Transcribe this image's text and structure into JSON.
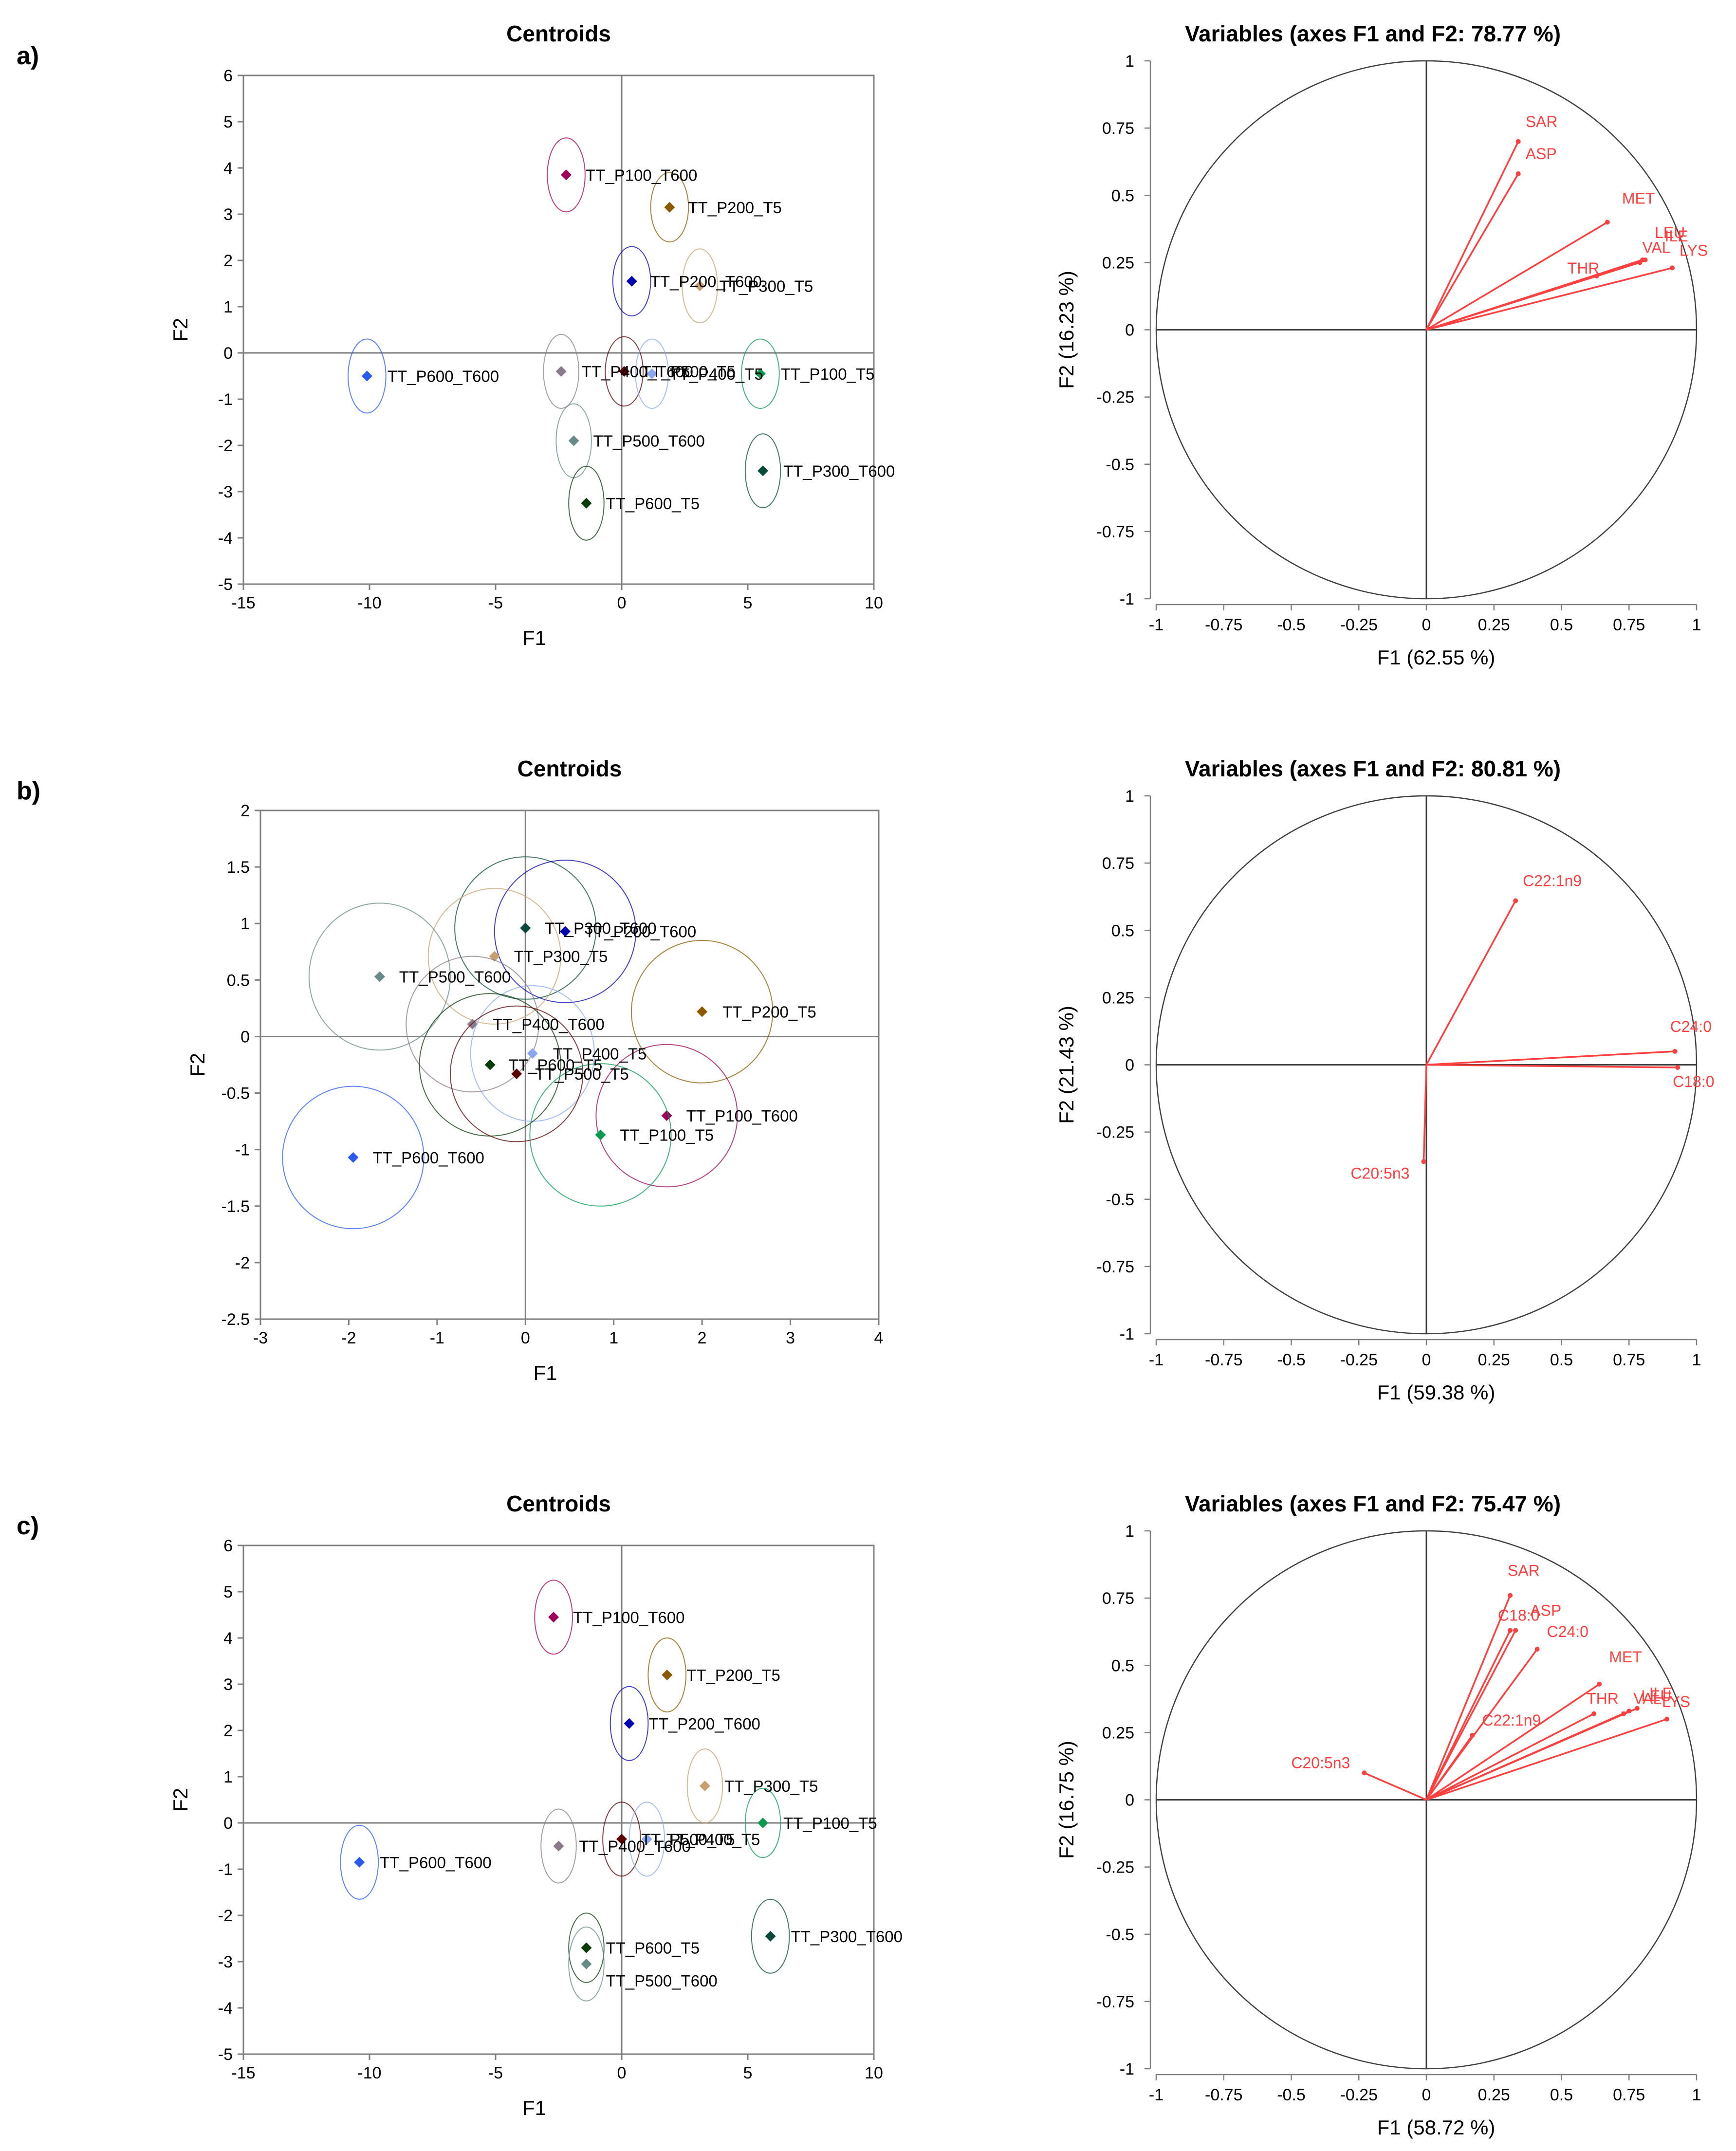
{
  "panel_labels": [
    "a)",
    "b)",
    "c)"
  ],
  "colors": {
    "axis": "#7f7f7f",
    "label": "#000000",
    "vector": "#ff4040",
    "circle": "#404040",
    "group": {
      "TT_P100_T600": "#a0005a",
      "TT_P200_T5": "#8b5a00",
      "TT_P200_T600": "#0000b0",
      "TT_P300_T5": "#c8a070",
      "TT_P300_T600": "#0a4a3a",
      "TT_P400_T600": "#8a7a8a",
      "TT_P400_T5": "#8aa8f0",
      "TT_P500_T5": "#5a0000",
      "TT_P100_T5": "#0a9a50",
      "TT_P600_T600": "#2a5af0",
      "TT_P500_T600": "#6a8a8a",
      "TT_P600_T5": "#0a3a0a"
    }
  },
  "chart_data": [
    {
      "panel": "a)",
      "type": "scatter",
      "title": "Centroids",
      "xlabel": "F1",
      "ylabel": "F2",
      "xlim": [
        -15,
        10
      ],
      "ylim": [
        -5,
        6
      ],
      "xticks": [
        -15,
        -10,
        -5,
        0,
        5,
        10
      ],
      "yticks": [
        -5,
        -4,
        -3,
        -2,
        -1,
        0,
        1,
        2,
        3,
        4,
        5,
        6
      ],
      "points": [
        {
          "label": "TT_P100_T600",
          "x": -2.2,
          "y": 3.85,
          "rx": 0.75,
          "ry": 0.8
        },
        {
          "label": "TT_P200_T5",
          "x": 1.9,
          "y": 3.15,
          "rx": 0.75,
          "ry": 0.75
        },
        {
          "label": "TT_P200_T600",
          "x": 0.4,
          "y": 1.55,
          "rx": 0.75,
          "ry": 0.75
        },
        {
          "label": "TT_P300_T5",
          "x": 3.1,
          "y": 1.45,
          "rx": 0.7,
          "ry": 0.8
        },
        {
          "label": "TT_P600_T600",
          "x": -10.1,
          "y": -0.5,
          "rx": 0.75,
          "ry": 0.8
        },
        {
          "label": "TT_P400_T600",
          "x": -2.4,
          "y": -0.4,
          "rx": 0.7,
          "ry": 0.8
        },
        {
          "label": "TT_P500_T5",
          "x": 0.1,
          "y": -0.4,
          "rx": 0.75,
          "ry": 0.75
        },
        {
          "label": "TT_P400_T5",
          "x": 1.2,
          "y": -0.45,
          "rx": 0.65,
          "ry": 0.75
        },
        {
          "label": "TT_P100_T5",
          "x": 5.5,
          "y": -0.45,
          "rx": 0.75,
          "ry": 0.75
        },
        {
          "label": "TT_P500_T600",
          "x": -1.9,
          "y": -1.9,
          "rx": 0.7,
          "ry": 0.8
        },
        {
          "label": "TT_P300_T600",
          "x": 5.6,
          "y": -2.55,
          "rx": 0.7,
          "ry": 0.8
        },
        {
          "label": "TT_P600_T5",
          "x": -1.4,
          "y": -3.25,
          "rx": 0.7,
          "ry": 0.8
        }
      ],
      "point_labels": [
        {
          "text": "TT_P100_T600",
          "for": "TT_P100_T600"
        },
        {
          "text": "TT_P200_T5",
          "for": "TT_P200_T5"
        },
        {
          "text": "TT_P200_T600",
          "for": "TT_P200_T600"
        },
        {
          "text": "TT_P300_T5",
          "for": "TT_P300_T5"
        },
        {
          "text": "TT_P600_T600",
          "for": "TT_P600_T600"
        },
        {
          "text": "TT_P400_T600",
          "for": "TT_P400_T600"
        },
        {
          "text": "TT_P500_T5",
          "for": "TT_P500_T5"
        },
        {
          "text": "TT_P400_T5",
          "for": "TT_P400_T5"
        },
        {
          "text": "TT_P100_T5",
          "for": "TT_P100_T5"
        },
        {
          "text": "TT_P500_T600",
          "for": "TT_P500_T600"
        },
        {
          "text": "TT_P300_T600",
          "for": "TT_P300_T600"
        },
        {
          "text": "TT_P600_T5",
          "for": "TT_P600_T5"
        }
      ]
    },
    {
      "panel": "a)",
      "type": "correlation-circle",
      "title": "Variables (axes F1 and F2: 78.77 %)",
      "xlabel": "F1 (62.55 %)",
      "ylabel": "F2 (16.23 %)",
      "xlim": [
        -1,
        1
      ],
      "ylim": [
        -1,
        1
      ],
      "xticks": [
        -1,
        -0.75,
        -0.5,
        -0.25,
        0,
        0.25,
        0.5,
        0.75,
        1
      ],
      "yticks": [
        -1,
        -0.75,
        -0.5,
        -0.25,
        0,
        0.25,
        0.5,
        0.75,
        1
      ],
      "vectors": [
        {
          "label": "SAR",
          "x": 0.34,
          "y": 0.7
        },
        {
          "label": "ASP",
          "x": 0.34,
          "y": 0.58
        },
        {
          "label": "MET",
          "x": 0.67,
          "y": 0.4
        },
        {
          "label": "LEU",
          "x": 0.8,
          "y": 0.26
        },
        {
          "label": "ILE",
          "x": 0.81,
          "y": 0.26
        },
        {
          "label": "VAL",
          "x": 0.79,
          "y": 0.25
        },
        {
          "label": "THR",
          "x": 0.63,
          "y": 0.2
        },
        {
          "label": "LYS",
          "x": 0.91,
          "y": 0.23
        }
      ]
    },
    {
      "panel": "b)",
      "type": "scatter",
      "title": "Centroids",
      "xlabel": "F1",
      "ylabel": "F2",
      "xlim": [
        -3,
        4
      ],
      "ylim": [
        -2.5,
        2
      ],
      "xticks": [
        -3,
        -2,
        -1,
        0,
        1,
        2,
        3,
        4
      ],
      "yticks": [
        -2.5,
        -2,
        -1.5,
        -1,
        -0.5,
        0,
        0.5,
        1,
        1.5,
        2
      ],
      "points": [
        {
          "label": "TT_P300_T600",
          "x": 0.0,
          "y": 0.96,
          "rx": 0.8,
          "ry": 0.63
        },
        {
          "label": "TT_P200_T600",
          "x": 0.45,
          "y": 0.93,
          "rx": 0.8,
          "ry": 0.63
        },
        {
          "label": "TT_P300_T5",
          "x": -0.35,
          "y": 0.71,
          "rx": 0.75,
          "ry": 0.6
        },
        {
          "label": "TT_P500_T600",
          "x": -1.65,
          "y": 0.53,
          "rx": 0.8,
          "ry": 0.65
        },
        {
          "label": "TT_P200_T5",
          "x": 2.0,
          "y": 0.22,
          "rx": 0.8,
          "ry": 0.63
        },
        {
          "label": "TT_P400_T600",
          "x": -0.6,
          "y": 0.11,
          "rx": 0.75,
          "ry": 0.6
        },
        {
          "label": "TT_P400_T5",
          "x": 0.08,
          "y": -0.15,
          "rx": 0.7,
          "ry": 0.6
        },
        {
          "label": "TT_P600_T5",
          "x": -0.4,
          "y": -0.25,
          "rx": 0.8,
          "ry": 0.63
        },
        {
          "label": "TT_P500_T5",
          "x": -0.1,
          "y": -0.33,
          "rx": 0.75,
          "ry": 0.6
        },
        {
          "label": "TT_P100_T600",
          "x": 1.6,
          "y": -0.7,
          "rx": 0.8,
          "ry": 0.63
        },
        {
          "label": "TT_P100_T5",
          "x": 0.85,
          "y": -0.87,
          "rx": 0.8,
          "ry": 0.63
        },
        {
          "label": "TT_P600_T600",
          "x": -1.95,
          "y": -1.07,
          "rx": 0.8,
          "ry": 0.63
        }
      ],
      "point_labels": [
        {
          "text": "TT_P300_T600",
          "for": "TT_P300_T600"
        },
        {
          "text": "TT_P200_T600",
          "for": "TT_P200_T600"
        },
        {
          "text": "TT_P300_T5",
          "for": "TT_P300_T5"
        },
        {
          "text": "TT_P500_T600",
          "for": "TT_P500_T600"
        },
        {
          "text": "TT_P200_T5",
          "for": "TT_P200_T5"
        },
        {
          "text": "TT_P400_T600",
          "for": "TT_P400_T600"
        },
        {
          "text": "TT_P400_T5",
          "for": "TT_P400_T5"
        },
        {
          "text": "TT_P600_T5",
          "for": "TT_P600_T5"
        },
        {
          "text": "TT_P500_T5",
          "for": "TT_P500_T5"
        },
        {
          "text": "TT_P100_T600",
          "for": "TT_P100_T600"
        },
        {
          "text": "TT_P100_T5",
          "for": "TT_P100_T5"
        },
        {
          "text": "TT_P600_T600",
          "for": "TT_P600_T600"
        }
      ]
    },
    {
      "panel": "b)",
      "type": "correlation-circle",
      "title": "Variables (axes F1 and F2: 80.81 %)",
      "xlabel": "F1 (59.38 %)",
      "ylabel": "F2 (21.43 %)",
      "xlim": [
        -1,
        1
      ],
      "ylim": [
        -1,
        1
      ],
      "xticks": [
        -1,
        -0.75,
        -0.5,
        -0.25,
        0,
        0.25,
        0.5,
        0.75,
        1
      ],
      "yticks": [
        -1,
        -0.75,
        -0.5,
        -0.25,
        0,
        0.25,
        0.5,
        0.75,
        1
      ],
      "vectors": [
        {
          "label": "C22:1n9",
          "x": 0.33,
          "y": 0.61
        },
        {
          "label": "C24:0",
          "x": 0.92,
          "y": 0.05
        },
        {
          "label": "C18:0",
          "x": 0.93,
          "y": -0.01
        },
        {
          "label": "C20:5n3",
          "x": -0.01,
          "y": -0.36
        }
      ]
    },
    {
      "panel": "c)",
      "type": "scatter",
      "title": "Centroids",
      "xlabel": "F1",
      "ylabel": "F2",
      "xlim": [
        -15,
        10
      ],
      "ylim": [
        -5,
        6
      ],
      "xticks": [
        -15,
        -10,
        -5,
        0,
        5,
        10
      ],
      "yticks": [
        -5,
        -4,
        -3,
        -2,
        -1,
        0,
        1,
        2,
        3,
        4,
        5,
        6
      ],
      "points": [
        {
          "label": "TT_P100_T600",
          "x": -2.7,
          "y": 4.45,
          "rx": 0.75,
          "ry": 0.8
        },
        {
          "label": "TT_P200_T5",
          "x": 1.8,
          "y": 3.2,
          "rx": 0.75,
          "ry": 0.8
        },
        {
          "label": "TT_P200_T600",
          "x": 0.3,
          "y": 2.15,
          "rx": 0.75,
          "ry": 0.8
        },
        {
          "label": "TT_P300_T5",
          "x": 3.3,
          "y": 0.8,
          "rx": 0.7,
          "ry": 0.8
        },
        {
          "label": "TT_P100_T5",
          "x": 5.6,
          "y": 0.0,
          "rx": 0.7,
          "ry": 0.75
        },
        {
          "label": "TT_P500_T5",
          "x": 0.0,
          "y": -0.35,
          "rx": 0.75,
          "ry": 0.8
        },
        {
          "label": "TT_P400_T5",
          "x": 1.0,
          "y": -0.35,
          "rx": 0.7,
          "ry": 0.8
        },
        {
          "label": "TT_P400_T600",
          "x": -2.5,
          "y": -0.5,
          "rx": 0.7,
          "ry": 0.8
        },
        {
          "label": "TT_P600_T600",
          "x": -10.4,
          "y": -0.85,
          "rx": 0.75,
          "ry": 0.8
        },
        {
          "label": "TT_P300_T600",
          "x": 5.9,
          "y": -2.45,
          "rx": 0.75,
          "ry": 0.8
        },
        {
          "label": "TT_P600_T5",
          "x": -1.4,
          "y": -2.7,
          "rx": 0.7,
          "ry": 0.75
        },
        {
          "label": "TT_P500_T600",
          "x": -1.4,
          "y": -3.05,
          "rx": 0.7,
          "ry": 0.8
        }
      ],
      "point_labels": [
        {
          "text": "TT_P100_T600",
          "for": "TT_P100_T600"
        },
        {
          "text": "TT_P200_T5",
          "for": "TT_P200_T5"
        },
        {
          "text": "TT_P200_T600",
          "for": "TT_P200_T600"
        },
        {
          "text": "TT_P300_T5",
          "for": "TT_P300_T5"
        },
        {
          "text": "TT_P100_T5",
          "for": "TT_P100_T5"
        },
        {
          "text": "TT_P500_T5",
          "for": "TT_P500_T5"
        },
        {
          "text": "TT_P400_T5",
          "for": "TT_P400_T5"
        },
        {
          "text": "TT_P400_T600",
          "for": "TT_P400_T600"
        },
        {
          "text": "TT_P600_T600",
          "for": "TT_P600_T600"
        },
        {
          "text": "TT_P300_T600",
          "for": "TT_P300_T600"
        },
        {
          "text": "TT_P600_T5",
          "for": "TT_P600_T5"
        },
        {
          "text": "TT_P500_T600",
          "for": "TT_P500_T600"
        }
      ]
    },
    {
      "panel": "c)",
      "type": "correlation-circle",
      "title": "Variables (axes F1 and F2: 75.47 %)",
      "xlabel": "F1 (58.72 %)",
      "ylabel": "F2 (16.75 %)",
      "xlim": [
        -1,
        1
      ],
      "ylim": [
        -1,
        1
      ],
      "xticks": [
        -1,
        -0.75,
        -0.5,
        -0.25,
        0,
        0.25,
        0.5,
        0.75,
        1
      ],
      "yticks": [
        -1,
        -0.75,
        -0.5,
        -0.25,
        0,
        0.25,
        0.5,
        0.75,
        1
      ],
      "vectors": [
        {
          "label": "SAR",
          "x": 0.31,
          "y": 0.76
        },
        {
          "label": "ASP",
          "x": 0.33,
          "y": 0.63
        },
        {
          "label": "C18:0",
          "x": 0.31,
          "y": 0.63
        },
        {
          "label": "C24:0",
          "x": 0.41,
          "y": 0.56
        },
        {
          "label": "MET",
          "x": 0.64,
          "y": 0.43
        },
        {
          "label": "LEU",
          "x": 0.75,
          "y": 0.33
        },
        {
          "label": "ILE",
          "x": 0.78,
          "y": 0.34
        },
        {
          "label": "THR",
          "x": 0.62,
          "y": 0.32
        },
        {
          "label": "VAL",
          "x": 0.73,
          "y": 0.32
        },
        {
          "label": "LYS",
          "x": 0.89,
          "y": 0.3
        },
        {
          "label": "C22:1n9",
          "x": 0.17,
          "y": 0.24
        },
        {
          "label": "C20:5n3",
          "x": -0.23,
          "y": 0.1
        }
      ]
    }
  ]
}
